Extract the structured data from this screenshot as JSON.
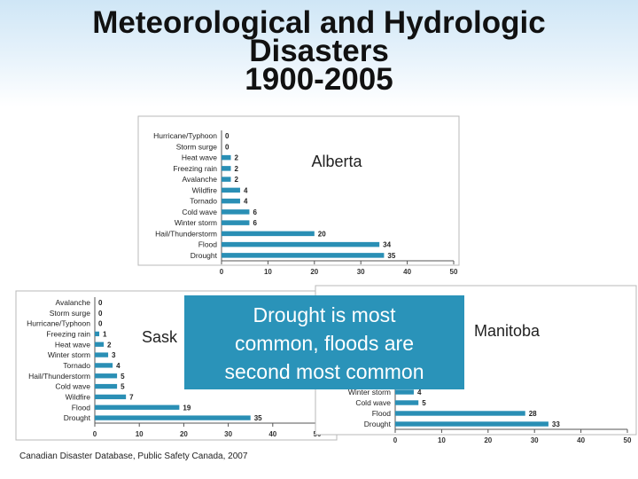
{
  "slide": {
    "title_lines": [
      "Meteorological and Hydrologic",
      "Disasters",
      "1900-2005"
    ],
    "callout_lines": [
      "Drought is most",
      "common, floods are",
      "second most common"
    ],
    "source": "Canadian Disaster Database, Public Safety Canada, 2007"
  },
  "colors": {
    "bar": "#2a8fb5",
    "axis": "#555555",
    "callout": "#2a93b9"
  },
  "chart_data": [
    {
      "type": "bar",
      "orientation": "horizontal",
      "title": "Alberta",
      "categories": [
        "Hurricane/Typhoon",
        "Storm surge",
        "Heat wave",
        "Freezing rain",
        "Avalanche",
        "Wildfire",
        "Tornado",
        "Cold wave",
        "Winter storm",
        "Hail/Thunderstorm",
        "Flood",
        "Drought"
      ],
      "values": [
        0,
        0,
        2,
        2,
        2,
        4,
        4,
        6,
        6,
        20,
        34,
        35
      ],
      "xlim": [
        0,
        50
      ],
      "xticks": [
        0,
        10,
        20,
        30,
        40,
        50
      ]
    },
    {
      "type": "bar",
      "orientation": "horizontal",
      "title": "Sask",
      "categories": [
        "Avalanche",
        "Storm surge",
        "Hurricane/Typhoon",
        "Freezing rain",
        "Heat wave",
        "Winter storm",
        "Tornado",
        "Hail/Thunderstorm",
        "Cold wave",
        "Wildfire",
        "Flood",
        "Drought"
      ],
      "values": [
        0,
        0,
        0,
        1,
        2,
        3,
        4,
        5,
        5,
        7,
        19,
        35
      ],
      "xlim": [
        0,
        50
      ],
      "xticks": [
        0,
        10,
        20,
        30,
        40,
        50
      ]
    },
    {
      "type": "bar",
      "orientation": "horizontal",
      "title": "Manitoba",
      "categories": [
        "Winter storm",
        "Cold wave",
        "Flood",
        "Drought"
      ],
      "values": [
        4,
        5,
        28,
        33
      ],
      "xlim": [
        0,
        50
      ],
      "xticks": [
        0,
        10,
        20,
        30,
        40,
        50
      ]
    }
  ]
}
